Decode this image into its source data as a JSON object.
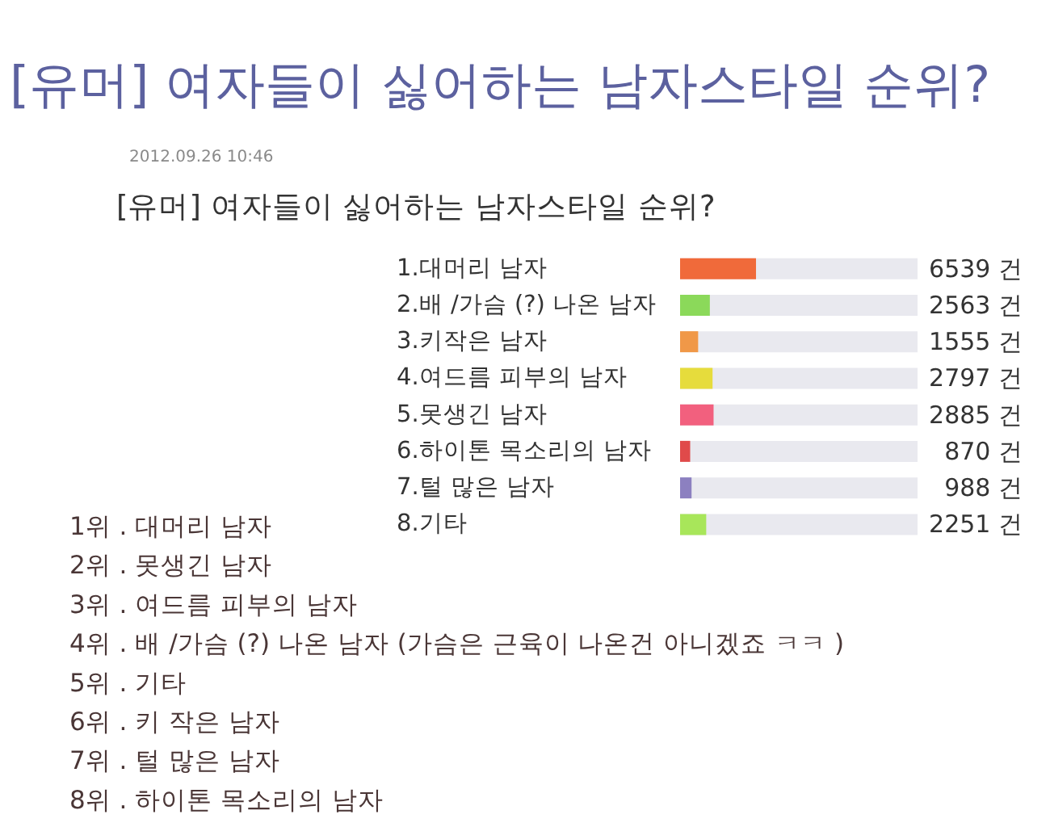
{
  "chart_data": {
    "type": "bar",
    "orientation": "horizontal",
    "title": "[유머] 여자들이 싫어하는 남자스타일 순위?",
    "categories": [
      "1.대머리 남자",
      "2.배 /가슴 (?) 나온 남자",
      "3.키작은 남자",
      "4.여드름 피부의 남자",
      "5.못생긴 남자",
      "6.하이톤 목소리의 남자",
      "7.털 많은 남자",
      "8.기타"
    ],
    "values": [
      6539,
      2563,
      1555,
      2797,
      2885,
      870,
      988,
      2251
    ],
    "colors": [
      "#f06a3a",
      "#8bd95a",
      "#f09848",
      "#e6dc3c",
      "#f2607e",
      "#e04a4a",
      "#8c80c0",
      "#a8e65a"
    ],
    "value_labels": [
      "6539 건",
      "2563 건",
      "1555 건",
      "2797 건",
      "2885 건",
      "870 건",
      "988 건",
      "2251 건"
    ],
    "xlim": [
      0,
      20448
    ],
    "tick_labels": "y",
    "annotations": [
      "2012.09.26 10:46",
      "[유머] 여자들이 싫어하는 남자스타일 순위?",
      "1위 . 대머리 남자",
      "2위 . 못생긴 남자",
      "3위 . 여드름 피부의 남자",
      "4위 . 배 /가슴 (?) 나온 남자 (가슴은 근육이 나온건 아니겠죠 ㅋㅋ )",
      "5위 . 기타",
      "6위 . 키 작은 남자",
      "7위 . 털 많은 남자",
      "8위 . 하이톤 목소리의 남자"
    ]
  }
}
